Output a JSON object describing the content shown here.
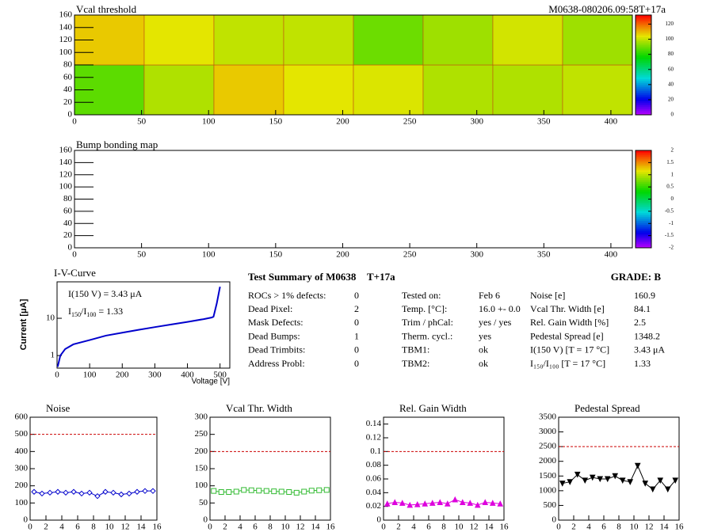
{
  "chart_data": [
    {
      "type": "heatmap",
      "title": "Vcal threshold",
      "label": "M0638-080206.09:58T+17a",
      "xlim": [
        0,
        416
      ],
      "xticks": [
        0,
        50,
        100,
        150,
        200,
        250,
        300,
        350,
        400
      ],
      "ylim": [
        0,
        160
      ],
      "yticks": [
        0,
        20,
        40,
        60,
        80,
        100,
        120,
        140,
        160
      ],
      "zlim": [
        0,
        132
      ],
      "zticks": [
        0,
        20,
        40,
        60,
        80,
        100,
        120
      ],
      "values": [
        [
          88,
          98,
          108,
          104,
          103,
          98,
          98,
          100
        ],
        [
          108,
          104,
          100,
          100,
          90,
          96,
          102,
          96
        ]
      ]
    },
    {
      "type": "heatmap",
      "title": "Bump bonding map",
      "xlim": [
        0,
        416
      ],
      "xticks": [
        0,
        50,
        100,
        150,
        200,
        250,
        300,
        350,
        400
      ],
      "ylim": [
        0,
        160
      ],
      "yticks": [
        0,
        20,
        40,
        60,
        80,
        100,
        120,
        140,
        160
      ],
      "zlim": [
        -2,
        2
      ],
      "zticks": [
        -2,
        -1.5,
        -1,
        -0.5,
        0,
        0.5,
        1,
        1.5,
        2
      ],
      "values": []
    },
    {
      "type": "line",
      "title": "I-V-Curve",
      "log_y": true,
      "color": "#0000cc",
      "xlabel": "Voltage [V]",
      "ylabel": "Current [μA]",
      "xlim": [
        0,
        530
      ],
      "xticks": [
        0,
        100,
        200,
        300,
        400,
        500
      ],
      "ylim": [
        0.46,
        95
      ],
      "yticks": [
        1,
        10
      ],
      "x": [
        2,
        10,
        25,
        50,
        100,
        150,
        200,
        250,
        300,
        350,
        400,
        450,
        475,
        480,
        490,
        500
      ],
      "values": [
        0.5,
        1.0,
        1.5,
        2.0,
        2.6,
        3.43,
        4.1,
        4.9,
        5.8,
        6.8,
        8.0,
        9.5,
        10.5,
        11,
        25,
        70
      ],
      "annotations": [
        "I(150 V) = 3.43 μA",
        {
          "pre": "I",
          "sub1": "150",
          "mid": "/I",
          "sub2": "100",
          "post": " =  1.33"
        }
      ]
    },
    {
      "type": "scatter-line",
      "title": "Noise",
      "color": "#0000cc",
      "marker": "diamond",
      "xlim": [
        0,
        16
      ],
      "xticks": [
        0,
        2,
        4,
        6,
        8,
        10,
        12,
        14,
        16
      ],
      "ylim": [
        0,
        600
      ],
      "yticks": [
        0,
        100,
        200,
        300,
        400,
        500,
        600
      ],
      "limit": 500,
      "x": [
        0.5,
        1.5,
        2.5,
        3.5,
        4.5,
        5.5,
        6.5,
        7.5,
        8.5,
        9.5,
        10.5,
        11.5,
        12.5,
        13.5,
        14.5,
        15.5
      ],
      "values": [
        165,
        155,
        160,
        165,
        160,
        165,
        155,
        160,
        140,
        165,
        160,
        150,
        155,
        165,
        170,
        170
      ]
    },
    {
      "type": "scatter-line",
      "title": "Vcal Thr. Width",
      "color": "#33bb33",
      "marker": "square",
      "xlim": [
        0,
        16
      ],
      "xticks": [
        0,
        2,
        4,
        6,
        8,
        10,
        12,
        14,
        16
      ],
      "ylim": [
        0,
        300
      ],
      "yticks": [
        0,
        50,
        100,
        150,
        200,
        250,
        300
      ],
      "limit": 200,
      "x": [
        0.5,
        1.5,
        2.5,
        3.5,
        4.5,
        5.5,
        6.5,
        7.5,
        8.5,
        9.5,
        10.5,
        11.5,
        12.5,
        13.5,
        14.5,
        15.5
      ],
      "values": [
        85,
        82,
        82,
        83,
        88,
        87,
        86,
        85,
        84,
        83,
        82,
        80,
        83,
        86,
        87,
        88
      ]
    },
    {
      "type": "scatter-line",
      "title": "Rel. Gain Width",
      "color": "#dd00dd",
      "marker": "triangle",
      "xlim": [
        0,
        16
      ],
      "xticks": [
        0,
        2,
        4,
        6,
        8,
        10,
        12,
        14,
        16
      ],
      "ylim": [
        0,
        0.15
      ],
      "yticks": [
        0,
        0.02,
        0.04,
        0.06,
        0.08,
        0.1,
        0.12,
        0.14
      ],
      "limit": 0.1,
      "x": [
        0.5,
        1.5,
        2.5,
        3.5,
        4.5,
        5.5,
        6.5,
        7.5,
        8.5,
        9.5,
        10.5,
        11.5,
        12.5,
        13.5,
        14.5,
        15.5
      ],
      "values": [
        0.024,
        0.026,
        0.025,
        0.022,
        0.023,
        0.024,
        0.025,
        0.026,
        0.024,
        0.03,
        0.026,
        0.025,
        0.022,
        0.026,
        0.025,
        0.024
      ]
    },
    {
      "type": "scatter-line",
      "title": "Pedestal Spread",
      "color": "#000000",
      "marker": "down-triangle",
      "xlim": [
        0,
        16
      ],
      "xticks": [
        0,
        2,
        4,
        6,
        8,
        10,
        12,
        14,
        16
      ],
      "ylim": [
        0,
        3500
      ],
      "yticks": [
        0,
        500,
        1000,
        1500,
        2000,
        2500,
        3000,
        3500
      ],
      "limit": 2500,
      "x": [
        0.5,
        1.5,
        2.5,
        3.5,
        4.5,
        5.5,
        6.5,
        7.5,
        8.5,
        9.5,
        10.5,
        11.5,
        12.5,
        13.5,
        14.5,
        15.5
      ],
      "values": [
        1250,
        1300,
        1550,
        1350,
        1450,
        1400,
        1400,
        1500,
        1350,
        1300,
        1850,
        1250,
        1050,
        1350,
        1050,
        1350
      ]
    }
  ],
  "summary": {
    "title": "Test Summary of M0638",
    "module": "T+17a",
    "grade": "GRADE:  B",
    "columns": [
      [
        [
          "ROCs > 1% defects:",
          "0"
        ],
        [
          "Dead Pixel:",
          "2"
        ],
        [
          "Mask Defects:",
          "0"
        ],
        [
          "Dead Bumps:",
          "1"
        ],
        [
          "Dead Trimbits:",
          "0"
        ],
        [
          "Address Probl:",
          "0"
        ]
      ],
      [
        [
          "Tested on:",
          "Feb 6"
        ],
        [
          "Temp. [°C]:",
          "16.0 +- 0.0"
        ],
        [
          "Trim / phCal:",
          "yes / yes"
        ],
        [
          "Therm. cycl.:",
          "yes"
        ],
        [
          "TBM1:",
          "ok"
        ],
        [
          "TBM2:",
          "ok"
        ]
      ],
      [
        [
          "Noise [e]",
          "160.9"
        ],
        [
          "Vcal Thr. Width [e]",
          "84.1"
        ],
        [
          "Rel. Gain Width [%]",
          "2.5"
        ],
        [
          "Pedestal Spread [e]",
          "1348.2"
        ],
        [
          "I(150 V) [T = 17 °C]",
          "3.43 μA"
        ],
        [
          "I₁₅₀/I₁₀₀  [T = 17 °C]",
          "1.33"
        ]
      ]
    ]
  }
}
